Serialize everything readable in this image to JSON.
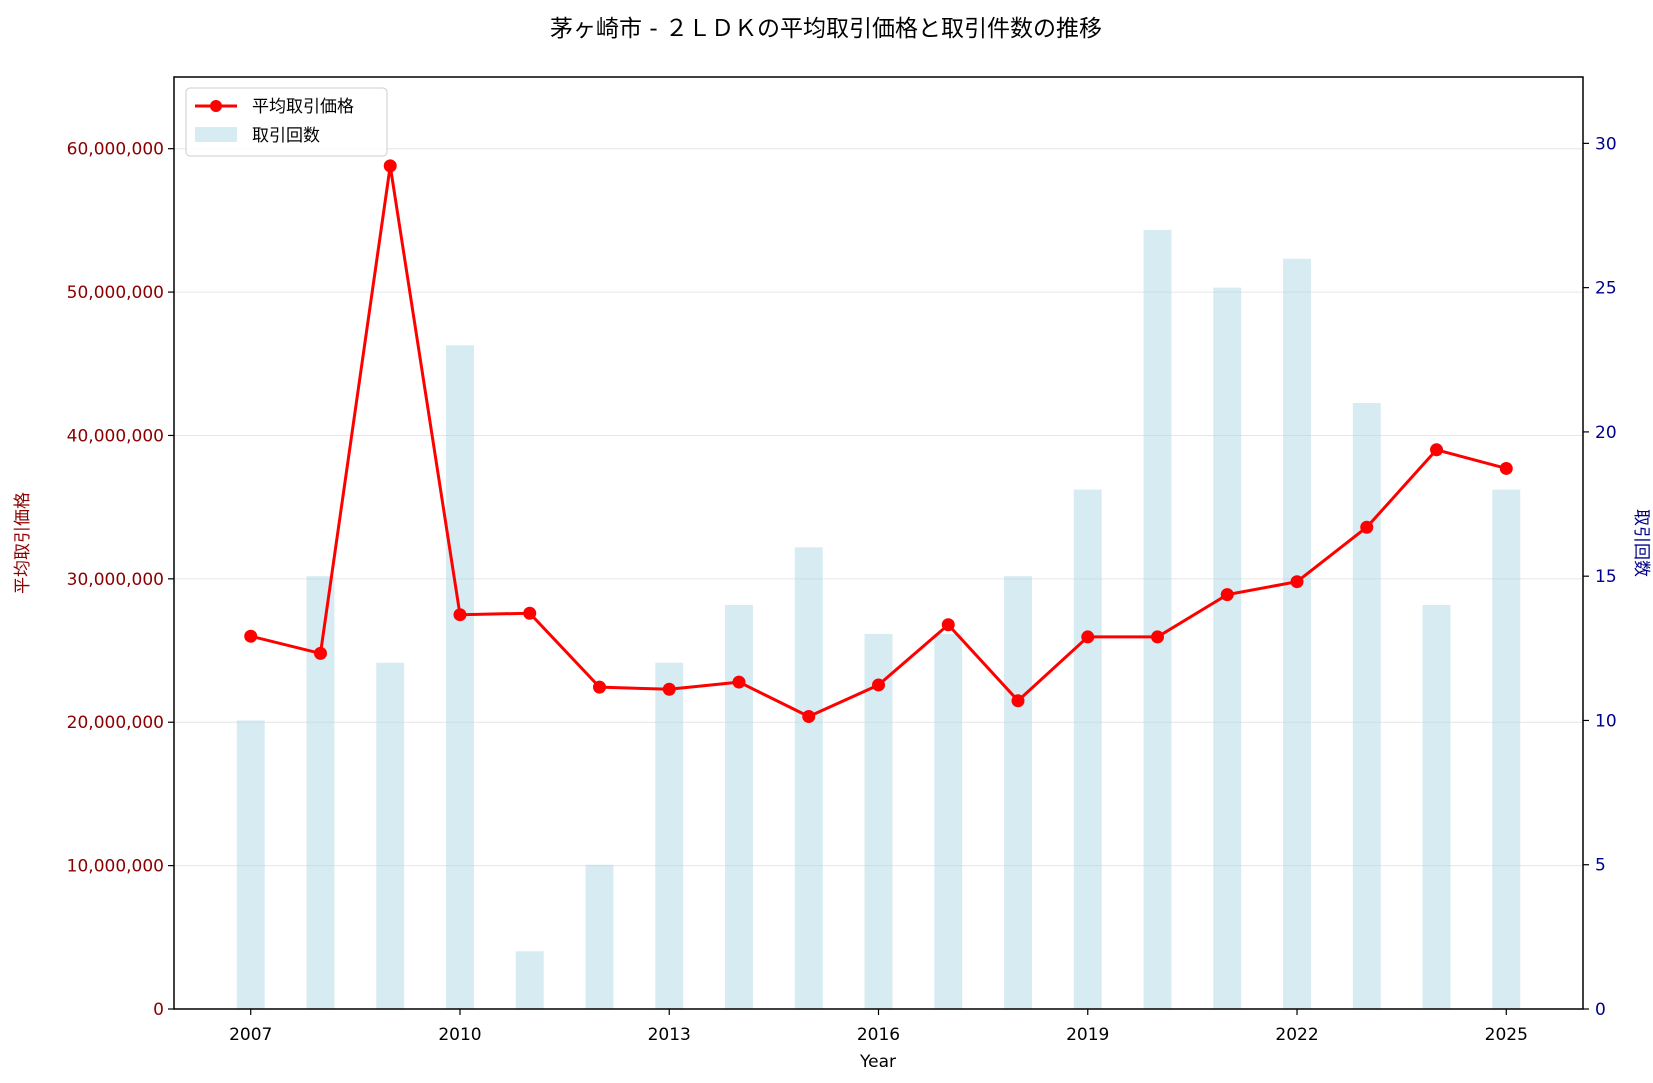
{
  "chart_data": {
    "type": "bar",
    "title": "茅ヶ崎市 - ２ＬＤＫの平均取引価格と取引件数の推移",
    "xlabel": "Year",
    "ylabel_left": "平均取引価格",
    "ylabel_right": "取引回数",
    "x": [
      2007,
      2008,
      2009,
      2010,
      2011,
      2012,
      2013,
      2014,
      2015,
      2016,
      2017,
      2018,
      2019,
      2020,
      2021,
      2022,
      2023,
      2024,
      2025
    ],
    "x_ticks": [
      2007,
      2010,
      2013,
      2016,
      2019,
      2022,
      2025
    ],
    "xlim": [
      2005.9,
      2026.1
    ],
    "ylim_left": [
      0,
      65000000
    ],
    "ylim_right": [
      0,
      32.3
    ],
    "y_ticks_left": [
      0,
      10000000,
      20000000,
      30000000,
      40000000,
      50000000,
      60000000
    ],
    "y_tick_labels_left": [
      "0",
      "10,000,000",
      "20,000,000",
      "30,000,000",
      "40,000,000",
      "50,000,000",
      "60,000,000"
    ],
    "y_ticks_right": [
      0,
      5,
      10,
      15,
      20,
      25,
      30
    ],
    "y_tick_labels_right": [
      "0",
      "5",
      "10",
      "15",
      "20",
      "25",
      "30"
    ],
    "x_tick_labels": [
      "2007",
      "2010",
      "2013",
      "2016",
      "2019",
      "2022",
      "2025"
    ],
    "grid": "horizontal",
    "legend_position": "top-left",
    "series": [
      {
        "name": "平均取引価格",
        "type": "line",
        "axis": "left",
        "color": "#ff0000",
        "values": [
          26000000,
          24800000,
          58800000,
          27500000,
          27600000,
          22450000,
          22300000,
          22800000,
          20400000,
          22600000,
          26800000,
          21500000,
          25950000,
          25950000,
          28900000,
          29800000,
          33600000,
          39000000,
          37700000
        ]
      },
      {
        "name": "取引回数",
        "type": "bar",
        "axis": "right",
        "color": "#add8e6",
        "values": [
          10,
          15,
          12,
          23,
          2,
          5,
          12,
          14,
          16,
          13,
          13,
          15,
          18,
          27,
          25,
          26,
          21,
          14,
          18
        ]
      }
    ],
    "colors": {
      "left_axis": "#8b0000",
      "right_axis": "#00008b",
      "grid": "#e6e6e6"
    }
  }
}
